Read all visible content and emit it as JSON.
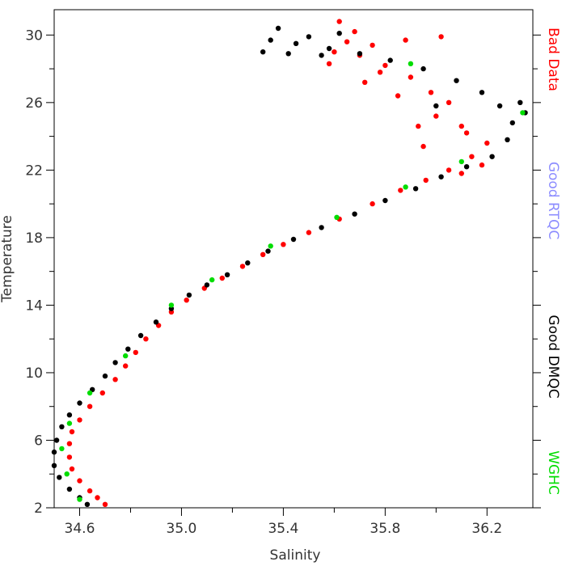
{
  "chart_data": {
    "type": "scatter",
    "title": "",
    "xlabel": "Salinity",
    "ylabel": "Temperature",
    "xlim": [
      34.5,
      36.38
    ],
    "ylim": [
      2,
      31.5
    ],
    "x_ticks": [
      "34.6",
      "35.0",
      "35.4",
      "35.8",
      "36.2"
    ],
    "x_tick_values": [
      34.6,
      35.0,
      35.4,
      35.8,
      36.2
    ],
    "y_ticks": [
      "2",
      "6",
      "10",
      "14",
      "18",
      "22",
      "26",
      "30"
    ],
    "y_tick_values": [
      2,
      6,
      10,
      14,
      18,
      22,
      26,
      30
    ],
    "legend_placement": "right-vertical",
    "series": [
      {
        "name": "Bad Data",
        "color": "#ff0000",
        "points": [
          [
            34.7,
            2.2
          ],
          [
            34.67,
            2.6
          ],
          [
            34.64,
            3.0
          ],
          [
            34.6,
            3.6
          ],
          [
            34.57,
            4.3
          ],
          [
            34.56,
            5.0
          ],
          [
            34.56,
            5.8
          ],
          [
            34.57,
            6.5
          ],
          [
            34.6,
            7.2
          ],
          [
            34.64,
            8.0
          ],
          [
            34.69,
            8.8
          ],
          [
            34.74,
            9.6
          ],
          [
            34.78,
            10.4
          ],
          [
            34.82,
            11.2
          ],
          [
            34.86,
            12.0
          ],
          [
            34.91,
            12.8
          ],
          [
            34.96,
            13.6
          ],
          [
            35.02,
            14.3
          ],
          [
            35.09,
            15.0
          ],
          [
            35.16,
            15.6
          ],
          [
            35.24,
            16.3
          ],
          [
            35.32,
            17.0
          ],
          [
            35.4,
            17.6
          ],
          [
            35.5,
            18.3
          ],
          [
            35.62,
            19.1
          ],
          [
            35.75,
            20.0
          ],
          [
            35.86,
            20.8
          ],
          [
            35.96,
            21.4
          ],
          [
            36.05,
            22.0
          ],
          [
            36.14,
            22.8
          ],
          [
            36.2,
            23.6
          ],
          [
            36.1,
            24.6
          ],
          [
            36.05,
            26.0
          ],
          [
            35.98,
            26.6
          ],
          [
            35.9,
            27.5
          ],
          [
            35.8,
            28.2
          ],
          [
            35.7,
            28.8
          ],
          [
            35.65,
            29.6
          ],
          [
            35.75,
            29.4
          ],
          [
            35.68,
            30.2
          ],
          [
            35.62,
            30.8
          ],
          [
            35.72,
            27.2
          ],
          [
            35.85,
            26.4
          ],
          [
            36.0,
            25.2
          ],
          [
            36.12,
            24.2
          ],
          [
            35.95,
            23.4
          ],
          [
            36.1,
            21.8
          ],
          [
            36.02,
            29.9
          ],
          [
            35.88,
            29.7
          ],
          [
            35.6,
            29.0
          ],
          [
            35.58,
            28.3
          ],
          [
            35.93,
            24.6
          ],
          [
            36.18,
            22.3
          ],
          [
            35.78,
            27.8
          ]
        ]
      },
      {
        "name": "Good DMQC",
        "color": "#000000",
        "points": [
          [
            34.63,
            2.2
          ],
          [
            34.6,
            2.6
          ],
          [
            34.56,
            3.1
          ],
          [
            34.52,
            3.8
          ],
          [
            34.5,
            4.5
          ],
          [
            34.5,
            5.3
          ],
          [
            34.51,
            6.0
          ],
          [
            34.53,
            6.8
          ],
          [
            34.56,
            7.5
          ],
          [
            34.6,
            8.2
          ],
          [
            34.65,
            9.0
          ],
          [
            34.7,
            9.8
          ],
          [
            34.74,
            10.6
          ],
          [
            34.79,
            11.4
          ],
          [
            34.84,
            12.2
          ],
          [
            34.9,
            13.0
          ],
          [
            34.96,
            13.8
          ],
          [
            35.03,
            14.6
          ],
          [
            35.1,
            15.2
          ],
          [
            35.18,
            15.8
          ],
          [
            35.26,
            16.5
          ],
          [
            35.34,
            17.2
          ],
          [
            35.44,
            17.9
          ],
          [
            35.55,
            18.6
          ],
          [
            35.68,
            19.4
          ],
          [
            35.8,
            20.2
          ],
          [
            35.92,
            20.9
          ],
          [
            36.02,
            21.6
          ],
          [
            36.12,
            22.2
          ],
          [
            36.22,
            22.8
          ],
          [
            36.28,
            23.8
          ],
          [
            36.3,
            24.8
          ],
          [
            36.25,
            25.8
          ],
          [
            36.18,
            26.6
          ],
          [
            36.08,
            27.3
          ],
          [
            35.95,
            28.0
          ],
          [
            35.82,
            28.5
          ],
          [
            35.7,
            28.9
          ],
          [
            35.58,
            29.2
          ],
          [
            35.45,
            29.5
          ],
          [
            35.35,
            29.7
          ],
          [
            35.32,
            29.0
          ],
          [
            35.42,
            28.9
          ],
          [
            35.55,
            28.8
          ],
          [
            35.5,
            29.9
          ],
          [
            35.38,
            30.4
          ],
          [
            35.62,
            30.1
          ],
          [
            36.35,
            25.4
          ],
          [
            36.33,
            26.0
          ],
          [
            36.0,
            25.8
          ]
        ]
      },
      {
        "name": "WGHC",
        "color": "#00dd00",
        "points": [
          [
            34.6,
            2.5
          ],
          [
            34.55,
            4.0
          ],
          [
            34.53,
            5.5
          ],
          [
            34.56,
            7.0
          ],
          [
            34.64,
            8.8
          ],
          [
            34.78,
            11.0
          ],
          [
            34.96,
            14.0
          ],
          [
            35.12,
            15.5
          ],
          [
            35.35,
            17.5
          ],
          [
            35.61,
            19.2
          ],
          [
            35.88,
            21.0
          ],
          [
            36.1,
            22.5
          ],
          [
            36.34,
            25.4
          ],
          [
            35.9,
            28.3
          ]
        ]
      }
    ],
    "legend": [
      {
        "label": "Bad Data",
        "color": "#ff0000"
      },
      {
        "label": "Good RTQC",
        "color": "#8c8cff"
      },
      {
        "label": "Good DMQC",
        "color": "#000000"
      },
      {
        "label": "WGHC",
        "color": "#00dd00"
      }
    ],
    "grid": false
  }
}
